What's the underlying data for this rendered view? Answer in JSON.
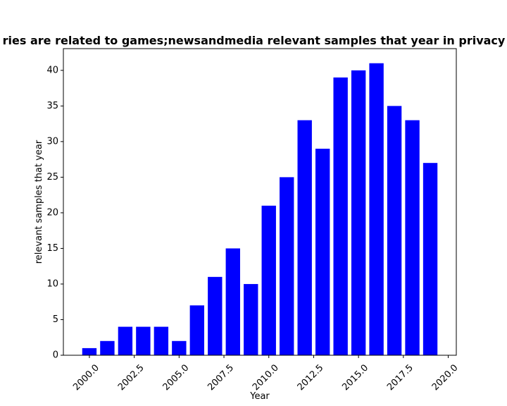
{
  "chart_data": {
    "type": "bar",
    "title": "ries are related to games;newsandmedia relevant samples that year in privacy p",
    "xlabel": "Year",
    "ylabel": "relevant samples that year",
    "x": [
      2000,
      2001,
      2002,
      2003,
      2004,
      2005,
      2006,
      2007,
      2008,
      2009,
      2010,
      2011,
      2012,
      2013,
      2014,
      2015,
      2016,
      2017,
      2018,
      2019
    ],
    "values": [
      1,
      2,
      4,
      4,
      4,
      2,
      7,
      11,
      15,
      10,
      21,
      25,
      33,
      29,
      39,
      40,
      41,
      35,
      33,
      27
    ],
    "xlim": [
      1998.55,
      2020.45
    ],
    "ylim": [
      0,
      43.05
    ],
    "x_ticks": [
      2000.0,
      2002.5,
      2005.0,
      2007.5,
      2010.0,
      2012.5,
      2015.0,
      2017.5,
      2020.0
    ],
    "x_tick_labels": [
      "2000.0",
      "2002.5",
      "2005.0",
      "2007.5",
      "2010.0",
      "2012.5",
      "2015.0",
      "2017.5",
      "2020.0"
    ],
    "y_ticks": [
      0,
      5,
      10,
      15,
      20,
      25,
      30,
      35,
      40
    ],
    "y_tick_labels": [
      "0",
      "5",
      "10",
      "15",
      "20",
      "25",
      "30",
      "35",
      "40"
    ],
    "bar_width": 0.8,
    "bar_color": "#0000ff",
    "grid": false,
    "legend": "none"
  }
}
